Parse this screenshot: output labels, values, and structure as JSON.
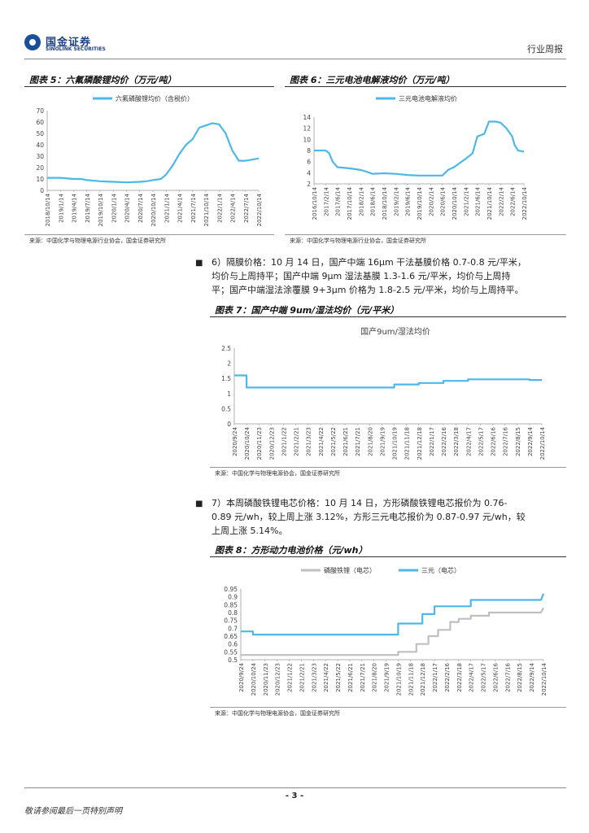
{
  "header": {
    "logo_cn": "国金证券",
    "logo_en": "SINOLINK SECURITIES",
    "report_type": "行业周报"
  },
  "fig5": {
    "title": "图表 5：六氟磷酸锂均价（万元/吨）",
    "source": "来源：中国化学与物理电源行业协会，国金证券研究所",
    "chart_data": {
      "type": "line",
      "title": "",
      "legend": [
        "六氟磷酸锂均价（含税价）"
      ],
      "color": "#4db8e8",
      "ylim": [
        0,
        70
      ],
      "yticks": [
        0,
        10,
        20,
        30,
        40,
        50,
        60,
        70
      ],
      "xticks": [
        "2018/10/14",
        "2019/1/14",
        "2019/4/14",
        "2019/7/14",
        "2019/10/14",
        "2020/1/14",
        "2020/4/14",
        "2020/7/14",
        "2020/10/14",
        "2021/1/14",
        "2021/4/14",
        "2021/7/14",
        "2021/10/14",
        "2022/1/14",
        "2022/4/14",
        "2022/7/14",
        "2022/10/14"
      ],
      "x": [
        0,
        1,
        2,
        2.6,
        3,
        4,
        5,
        6,
        7,
        7.5,
        8,
        8.6,
        9,
        9.5,
        10,
        10.5,
        11,
        11.5,
        12,
        12.5,
        13,
        13.5,
        14,
        14.5,
        15,
        15.5,
        16
      ],
      "values": [
        11,
        11,
        10,
        10,
        9,
        8,
        7.5,
        7,
        7.5,
        8,
        9,
        10,
        14,
        22,
        32,
        40,
        45,
        55,
        57,
        59,
        58,
        50,
        35,
        26,
        26,
        27,
        28
      ]
    }
  },
  "fig6": {
    "title": "图表 6：三元电池电解液均价（万元/吨）",
    "source": "来源：中国化学与物理电源行业协会，国金证券研究所",
    "chart_data": {
      "type": "line",
      "title": "",
      "legend": [
        "三元电池电解液均价"
      ],
      "color": "#4db8e8",
      "ylim": [
        2,
        14
      ],
      "yticks": [
        2,
        4,
        6,
        8,
        10,
        12,
        14
      ],
      "xticks": [
        "2016/10/14",
        "2017/2/14",
        "2017/6/14",
        "2017/10/14",
        "2018/2/14",
        "2018/6/14",
        "2018/10/14",
        "2019/2/14",
        "2019/6/14",
        "2019/10/14",
        "2020/2/14",
        "2020/6/14",
        "2020/10/14",
        "2021/2/14",
        "2021/6/14",
        "2021/10/14",
        "2022/2/14",
        "2022/6/14",
        "2022/10/14"
      ],
      "x": [
        0,
        1,
        1.3,
        1.6,
        2,
        3,
        4,
        4.5,
        5,
        6,
        7,
        8,
        9,
        10,
        11,
        11.5,
        12,
        13,
        13.6,
        14,
        14.6,
        15,
        15.6,
        16,
        16.5,
        17,
        17.2,
        17.5,
        18
      ],
      "values": [
        8,
        8,
        7.5,
        6,
        5,
        4.8,
        4.5,
        4.2,
        3.8,
        3.9,
        3.8,
        3.6,
        3.5,
        3.5,
        3.5,
        4.5,
        5,
        6.5,
        7.5,
        10.5,
        11,
        13.2,
        13.2,
        13,
        12,
        10.5,
        9,
        8,
        7.8
      ]
    }
  },
  "item6": {
    "text_lines": [
      "6）隔膜价格：10 月 14 日，国产中端 16μm 干法基膜价格 0.7-0.8 元/平米，",
      "均价与上周持平；国产中端 9μm 湿法基膜 1.3-1.6 元/平米，均价与上周持",
      "平；国产中端湿法涂覆膜 9+3μm 价格为 1.8-2.5 元/平米，均价与上周持平。"
    ]
  },
  "fig7": {
    "title": "图表 7：国产中端 9um/湿法均价（元/平米）",
    "source": "来源：中国化学与物理电源协会，国金证券研究所",
    "chart_data": {
      "type": "line",
      "title": "国产9um/湿法均价",
      "color": "#4db8e8",
      "ylim": [
        0,
        2.5
      ],
      "yticks": [
        0,
        0.5,
        1,
        1.5,
        2,
        2.5
      ],
      "xticks": [
        "2020/9/24",
        "2020/10/24",
        "2020/11/23",
        "2020/12/23",
        "2021/1/22",
        "2021/2/21",
        "2021/3/23",
        "2021/4/22",
        "2021/5/22",
        "2021/6/21",
        "2021/7/21",
        "2021/8/20",
        "2021/9/19",
        "2021/10/19",
        "2021/11/18",
        "2021/12/18",
        "2022/1/17",
        "2022/2/16",
        "2022/3/18",
        "2022/4/17",
        "2022/5/17",
        "2022/6/16",
        "2022/7/16",
        "2022/8/15",
        "2022/9/14",
        "2022/10/14"
      ],
      "x": [
        0,
        1,
        1,
        13,
        13,
        15,
        15,
        17,
        17,
        19,
        19,
        24,
        24,
        25
      ],
      "values": [
        1.6,
        1.6,
        1.2,
        1.2,
        1.3,
        1.3,
        1.35,
        1.35,
        1.42,
        1.42,
        1.47,
        1.47,
        1.45,
        1.45
      ]
    }
  },
  "item7": {
    "text_lines": [
      "7）本周磷酸铁锂电芯价格：10 月 14 日，方形磷酸铁锂电芯报价为 0.76-",
      "0.89 元/wh，较上周上涨 3.12%，方形三元电芯报价为 0.87-0.97 元/wh，较",
      "上周上涨 5.14%。"
    ]
  },
  "fig8": {
    "title": "图表 8：方形动力电池价格（元/wh）",
    "source": "来源：中国化学与物理电源协会，国金证券研究所",
    "chart_data": {
      "type": "line",
      "title": "",
      "ylim": [
        0.5,
        0.95
      ],
      "yticks": [
        0.5,
        0.55,
        0.6,
        0.65,
        0.7,
        0.75,
        0.8,
        0.85,
        0.9,
        0.95
      ],
      "xticks": [
        "2020/9/24",
        "2020/10/24",
        "2020/11/23",
        "2020/12/23",
        "2021/1/22",
        "2021/2/21",
        "2021/3/23",
        "2021/4/22",
        "2021/5/22",
        "2021/6/21",
        "2021/7/21",
        "2021/8/20",
        "2021/9/19",
        "2021/10/19",
        "2021/11/18",
        "2021/12/18",
        "2022/1/17",
        "2022/2/16",
        "2022/3/18",
        "2022/4/17",
        "2022/5/17",
        "2022/6/16",
        "2022/7/16",
        "2022/8/15",
        "2022/9/14",
        "2022/10/14"
      ],
      "series": [
        {
          "name": "磷酸铁锂（电芯）",
          "color": "#bfbfbf",
          "x": [
            0,
            6,
            6,
            13,
            13,
            14.5,
            14.5,
            15.5,
            15.5,
            16.3,
            16.3,
            17.3,
            17.3,
            18,
            18,
            19,
            19,
            20.5,
            20.5,
            24.8,
            25
          ],
          "values": [
            0.53,
            0.53,
            0.53,
            0.53,
            0.55,
            0.55,
            0.6,
            0.6,
            0.65,
            0.65,
            0.69,
            0.69,
            0.74,
            0.74,
            0.76,
            0.76,
            0.78,
            0.78,
            0.8,
            0.8,
            0.83
          ]
        },
        {
          "name": "三元（电芯）",
          "color": "#4db8e8",
          "x": [
            0,
            1,
            1,
            13,
            13,
            15,
            15,
            16,
            16,
            19,
            19,
            24.8,
            25
          ],
          "values": [
            0.68,
            0.68,
            0.66,
            0.66,
            0.73,
            0.73,
            0.79,
            0.79,
            0.84,
            0.84,
            0.88,
            0.88,
            0.92
          ]
        }
      ]
    }
  },
  "footer": {
    "page_no": "- 3 -",
    "disclaimer": "敬请参阅最后一页特别声明"
  }
}
